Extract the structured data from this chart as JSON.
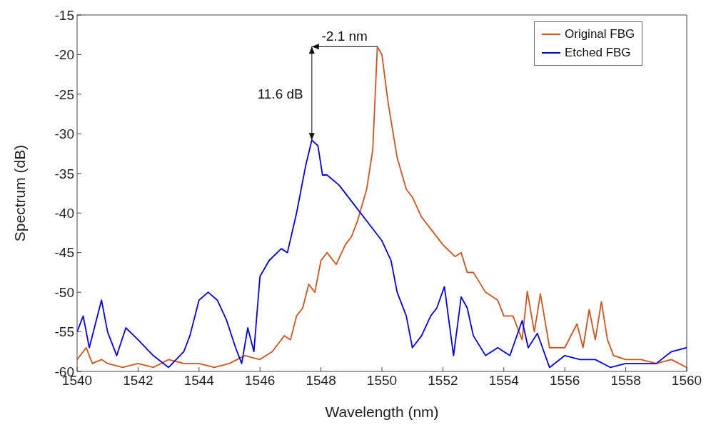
{
  "chart_data": {
    "type": "line",
    "xlabel": "Wavelength (nm)",
    "ylabel": "Spectrum (dB)",
    "xlim": [
      1540,
      1560
    ],
    "xticks": [
      1540,
      1542,
      1544,
      1546,
      1548,
      1550,
      1552,
      1554,
      1556,
      1558,
      1560
    ],
    "ylim": [
      -60,
      -15
    ],
    "yticks": [
      -60,
      -55,
      -50,
      -45,
      -40,
      -35,
      -30,
      -25,
      -20,
      -15
    ],
    "legend": "top right",
    "marker": "none",
    "line_style": "solid",
    "annotations": [
      {
        "text": "-2.1 nm",
        "x": 1549.85,
        "y": -19
      },
      {
        "text": "11.6 dB",
        "x": 1547.7,
        "y": -30.8
      }
    ],
    "series": [
      {
        "name": "Original FBG",
        "color": "#d95319",
        "x": [
          1540,
          1540.3,
          1540.5,
          1540.8,
          1541,
          1541.5,
          1542,
          1542.5,
          1543,
          1543.5,
          1544,
          1544.5,
          1545,
          1545.5,
          1546,
          1546.4,
          1546.8,
          1547,
          1547.2,
          1547.4,
          1547.6,
          1547.8,
          1548,
          1548.2,
          1548.5,
          1548.8,
          1549,
          1549.2,
          1549.5,
          1549.7,
          1549.85,
          1550,
          1550.2,
          1550.5,
          1550.8,
          1551,
          1551.3,
          1551.6,
          1552,
          1552.4,
          1552.6,
          1552.8,
          1553,
          1553.4,
          1553.8,
          1554,
          1554.3,
          1554.6,
          1554.77,
          1555,
          1555.2,
          1555.5,
          1556,
          1556.4,
          1556.6,
          1556.8,
          1557,
          1557.2,
          1557.4,
          1557.6,
          1558,
          1558.5,
          1559,
          1559.5,
          1560
        ],
        "values": [
          -58.5,
          -57,
          -59,
          -58.5,
          -59,
          -59.5,
          -59,
          -59.5,
          -58.5,
          -59,
          -59,
          -59.5,
          -59,
          -58,
          -58.5,
          -57.5,
          -55.5,
          -56,
          -53,
          -52,
          -49,
          -50,
          -46,
          -45,
          -46.5,
          -44,
          -43,
          -41,
          -37,
          -32,
          -19,
          -20,
          -26,
          -33,
          -37,
          -38,
          -40.5,
          -42,
          -44,
          -45.5,
          -45,
          -47.5,
          -47.5,
          -50,
          -51,
          -53,
          -53,
          -56,
          -49.9,
          -55,
          -50.2,
          -57,
          -57,
          -54,
          -57,
          -52.2,
          -56,
          -51.2,
          -56,
          -58,
          -58.5,
          -58.5,
          -59,
          -58.5,
          -59.5
        ]
      },
      {
        "name": "Etched FBG",
        "color": "#0000ff",
        "x": [
          1540,
          1540.2,
          1540.4,
          1540.8,
          1541,
          1541.3,
          1541.6,
          1542,
          1542.5,
          1543,
          1543.5,
          1543.7,
          1544,
          1544.3,
          1544.6,
          1544.9,
          1545.2,
          1545.4,
          1545.6,
          1545.8,
          1546,
          1546.3,
          1546.7,
          1546.9,
          1547.2,
          1547.5,
          1547.7,
          1547.9,
          1548.05,
          1548.2,
          1548.6,
          1549,
          1549.5,
          1550,
          1550.3,
          1550.5,
          1550.8,
          1551,
          1551.3,
          1551.6,
          1551.8,
          1552.05,
          1552.35,
          1552.6,
          1552.8,
          1553,
          1553.4,
          1553.8,
          1554.2,
          1554.6,
          1554.8,
          1555.1,
          1555.5,
          1556,
          1556.5,
          1557,
          1557.5,
          1558,
          1559,
          1559.5,
          1560
        ],
        "values": [
          -55,
          -53,
          -57,
          -51,
          -55,
          -58,
          -54.5,
          -56,
          -58,
          -59.5,
          -57.5,
          -55.5,
          -51,
          -50,
          -51,
          -53.5,
          -57,
          -59,
          -54.5,
          -57.5,
          -48,
          -46,
          -44.5,
          -45,
          -40,
          -34,
          -30.8,
          -31.5,
          -35.2,
          -35.2,
          -36.5,
          -38.5,
          -41,
          -43.5,
          -46,
          -50,
          -53,
          -57,
          -55.5,
          -53,
          -52,
          -49.3,
          -58,
          -50.6,
          -52,
          -55.5,
          -58,
          -57,
          -58,
          -53.6,
          -57,
          -55.2,
          -59.5,
          -58,
          -58.5,
          -58.5,
          -59.5,
          -59,
          -59,
          -57.5,
          -57
        ]
      }
    ]
  }
}
